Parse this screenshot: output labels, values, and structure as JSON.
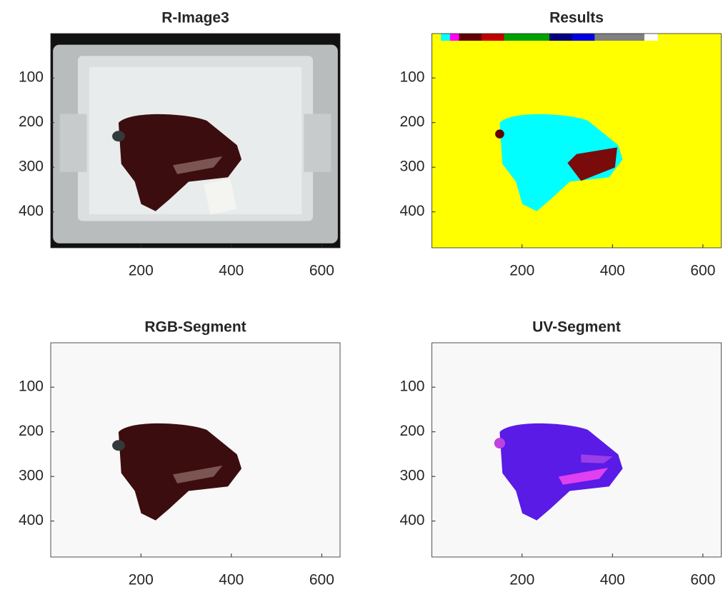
{
  "chart_data": [
    {
      "type": "image",
      "title": "R-Image3",
      "xlim": [
        0.5,
        640.5
      ],
      "ylim": [
        0.5,
        480.5
      ],
      "y_reversed": true,
      "xticks": [
        200,
        400,
        600
      ],
      "yticks": [
        100,
        200,
        300,
        400
      ]
    },
    {
      "type": "image",
      "title": "Results",
      "xlim": [
        0.5,
        640.5
      ],
      "ylim": [
        0.5,
        480.5
      ],
      "y_reversed": true,
      "xticks": [
        200,
        400,
        600
      ],
      "yticks": [
        100,
        200,
        300,
        400
      ]
    },
    {
      "type": "image",
      "title": "RGB-Segment",
      "xlim": [
        0.5,
        640.5
      ],
      "ylim": [
        0.5,
        480.5
      ],
      "y_reversed": true,
      "xticks": [
        200,
        400,
        600
      ],
      "yticks": [
        100,
        200,
        300,
        400
      ]
    },
    {
      "type": "image",
      "title": "UV-Segment",
      "xlim": [
        0.5,
        640.5
      ],
      "ylim": [
        0.5,
        480.5
      ],
      "y_reversed": true,
      "xticks": [
        200,
        400,
        600
      ],
      "yticks": [
        100,
        200,
        300,
        400
      ]
    }
  ]
}
